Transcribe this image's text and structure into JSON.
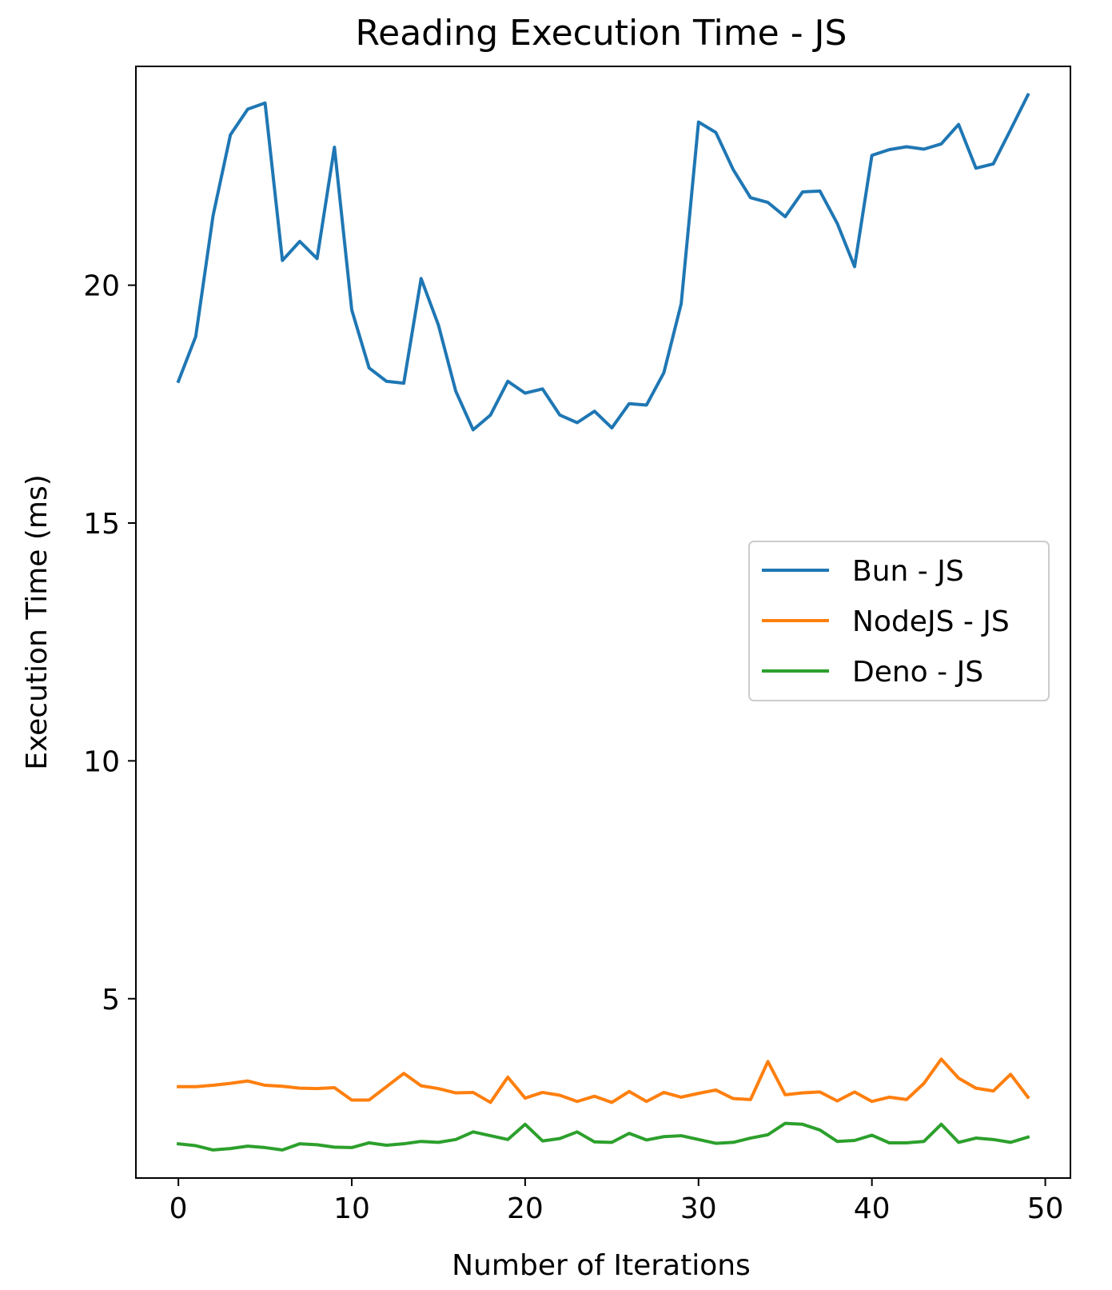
{
  "chart_data": {
    "type": "line",
    "title": "Reading Execution Time - JS",
    "xlabel": "Number of Iterations",
    "ylabel": "Execution Time (ms)",
    "xlim": [
      -2.45,
      51.45
    ],
    "ylim": [
      1.23,
      24.6
    ],
    "xticks": [
      0,
      10,
      20,
      30,
      40,
      50
    ],
    "yticks": [
      5,
      10,
      15,
      20
    ],
    "grid": false,
    "legend_position": "center-right",
    "x": [
      0,
      1,
      2,
      3,
      4,
      5,
      6,
      7,
      8,
      9,
      10,
      11,
      12,
      13,
      14,
      15,
      16,
      17,
      18,
      19,
      20,
      21,
      22,
      23,
      24,
      25,
      26,
      27,
      28,
      29,
      30,
      31,
      32,
      33,
      34,
      35,
      36,
      37,
      38,
      39,
      40,
      41,
      42,
      43,
      44,
      45,
      46,
      47,
      48,
      49
    ],
    "series": [
      {
        "name": "Bun - JS",
        "color": "#1f77b4",
        "values": [
          17.98,
          18.92,
          21.46,
          23.16,
          23.7,
          23.83,
          20.52,
          20.92,
          20.56,
          22.9,
          19.48,
          18.26,
          17.98,
          17.94,
          20.14,
          19.16,
          17.77,
          16.96,
          17.27,
          17.98,
          17.73,
          17.82,
          17.27,
          17.11,
          17.35,
          17.0,
          17.51,
          17.48,
          18.16,
          19.61,
          23.43,
          23.21,
          22.43,
          21.84,
          21.74,
          21.44,
          21.96,
          21.98,
          21.3,
          20.39,
          22.73,
          22.85,
          22.91,
          22.86,
          22.97,
          23.38,
          22.46,
          22.55,
          23.27,
          24.0
        ]
      },
      {
        "name": "NodeJS - JS",
        "color": "#ff7f0e",
        "values": [
          3.15,
          3.15,
          3.18,
          3.22,
          3.27,
          3.18,
          3.16,
          3.12,
          3.11,
          3.13,
          2.87,
          2.87,
          3.15,
          3.43,
          3.17,
          3.11,
          3.02,
          3.03,
          2.82,
          3.35,
          2.91,
          3.03,
          2.97,
          2.84,
          2.95,
          2.82,
          3.05,
          2.84,
          3.03,
          2.93,
          3.01,
          3.08,
          2.9,
          2.88,
          3.68,
          2.98,
          3.02,
          3.04,
          2.85,
          3.04,
          2.84,
          2.93,
          2.88,
          3.22,
          3.73,
          3.33,
          3.12,
          3.06,
          3.41,
          2.93
        ]
      },
      {
        "name": "Deno - JS",
        "color": "#2ca02c",
        "values": [
          1.95,
          1.91,
          1.82,
          1.85,
          1.9,
          1.87,
          1.82,
          1.95,
          1.93,
          1.88,
          1.87,
          1.97,
          1.92,
          1.95,
          2.0,
          1.98,
          2.04,
          2.2,
          2.12,
          2.04,
          2.36,
          2.01,
          2.06,
          2.2,
          1.99,
          1.98,
          2.17,
          2.03,
          2.1,
          2.12,
          2.04,
          1.96,
          1.98,
          2.07,
          2.14,
          2.38,
          2.36,
          2.24,
          2.0,
          2.02,
          2.13,
          1.97,
          1.97,
          2.0,
          2.36,
          1.98,
          2.07,
          2.04,
          1.98,
          2.09
        ]
      }
    ]
  }
}
